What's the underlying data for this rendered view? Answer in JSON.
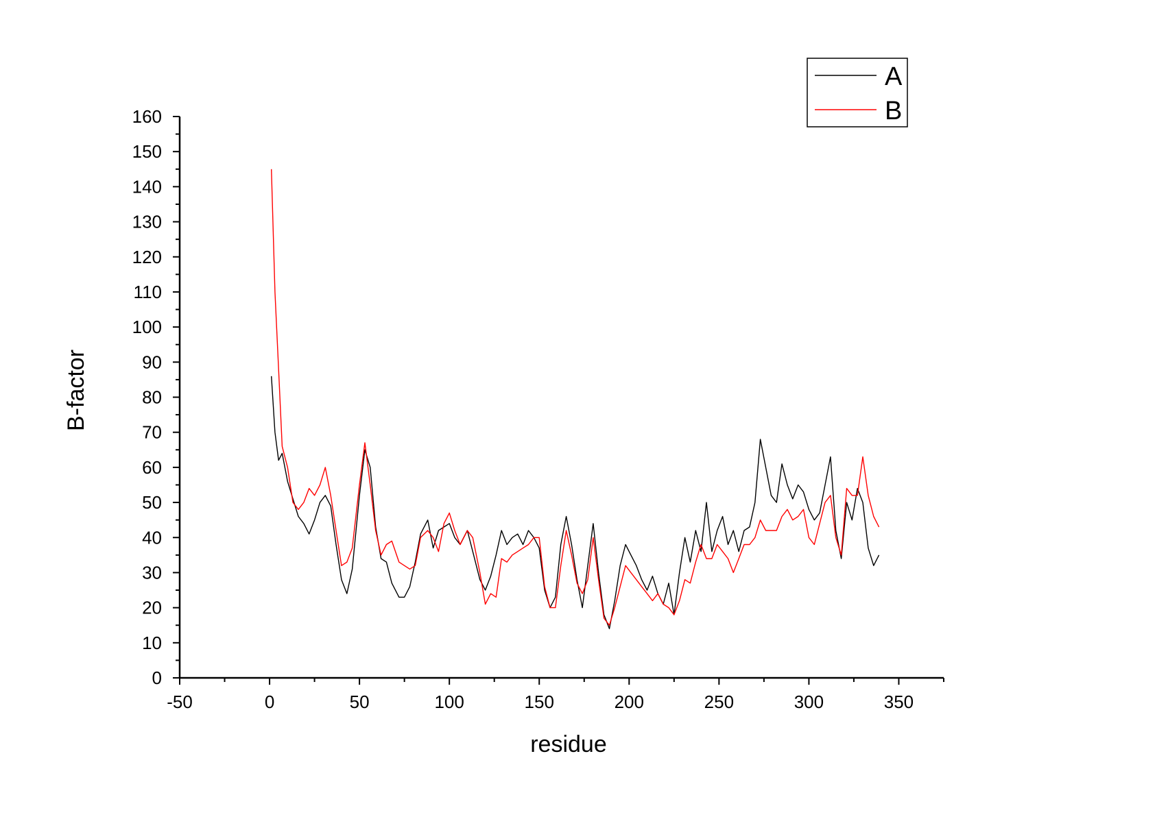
{
  "chart_data": {
    "type": "line",
    "title": "",
    "xlabel": "residue",
    "ylabel": "B-factor",
    "xlim": [
      -50,
      375
    ],
    "ylim": [
      0,
      160
    ],
    "xticks": [
      -50,
      0,
      50,
      100,
      150,
      200,
      250,
      300,
      350
    ],
    "xtick_labels": [
      "-50",
      "0",
      "50",
      "100",
      "150",
      "200",
      "250",
      "300",
      "350"
    ],
    "yticks": [
      0,
      10,
      20,
      30,
      40,
      50,
      60,
      70,
      80,
      90,
      100,
      110,
      120,
      130,
      140,
      150,
      160
    ],
    "ytick_labels": [
      "0",
      "10",
      "20",
      "30",
      "40",
      "50",
      "60",
      "70",
      "80",
      "90",
      "100",
      "110",
      "120",
      "130",
      "140",
      "150",
      "160"
    ],
    "grid": false,
    "legend_position": "top-right",
    "series": [
      {
        "name": "A",
        "color": "#000000",
        "x": [
          1,
          3,
          5,
          7,
          10,
          13,
          16,
          19,
          22,
          25,
          28,
          31,
          34,
          37,
          40,
          43,
          46,
          50,
          53,
          56,
          59,
          62,
          65,
          68,
          72,
          75,
          78,
          81,
          84,
          88,
          91,
          94,
          97,
          100,
          103,
          106,
          110,
          113,
          117,
          120,
          123,
          126,
          129,
          132,
          135,
          138,
          141,
          144,
          147,
          150,
          153,
          156,
          159,
          162,
          165,
          168,
          171,
          174,
          177,
          180,
          183,
          186,
          189,
          192,
          195,
          198,
          201,
          204,
          207,
          210,
          213,
          216,
          219,
          222,
          225,
          228,
          231,
          234,
          237,
          240,
          243,
          246,
          249,
          252,
          255,
          258,
          261,
          264,
          267,
          270,
          273,
          276,
          279,
          282,
          285,
          288,
          291,
          294,
          297,
          300,
          303,
          306,
          309,
          312,
          315,
          318,
          321,
          324,
          327,
          330,
          333,
          336,
          339
        ],
        "y": [
          86,
          70,
          62,
          64,
          56,
          51,
          46,
          44,
          41,
          45,
          50,
          52,
          49,
          38,
          28,
          24,
          31,
          52,
          65,
          60,
          43,
          34,
          33,
          27,
          23,
          23,
          26,
          33,
          41,
          45,
          37,
          42,
          43,
          44,
          40,
          38,
          42,
          36,
          28,
          25,
          29,
          35,
          42,
          38,
          40,
          41,
          38,
          42,
          40,
          37,
          25,
          20,
          23,
          38,
          46,
          38,
          28,
          20,
          32,
          44,
          30,
          18,
          14,
          22,
          32,
          38,
          35,
          32,
          28,
          25,
          29,
          24,
          21,
          27,
          18,
          30,
          40,
          33,
          42,
          36,
          50,
          36,
          42,
          46,
          38,
          42,
          36,
          42,
          43,
          50,
          68,
          60,
          52,
          50,
          61,
          55,
          51,
          55,
          53,
          48,
          45,
          47,
          55,
          63,
          42,
          34,
          50,
          45,
          54,
          50,
          37,
          32,
          35
        ]
      },
      {
        "name": "B",
        "color": "#ff0000",
        "x": [
          1,
          3,
          5,
          7,
          10,
          13,
          16,
          19,
          22,
          25,
          28,
          31,
          34,
          37,
          40,
          43,
          46,
          50,
          53,
          56,
          59,
          62,
          65,
          68,
          72,
          75,
          78,
          81,
          84,
          88,
          91,
          94,
          97,
          100,
          103,
          106,
          110,
          113,
          117,
          120,
          123,
          126,
          129,
          132,
          135,
          138,
          141,
          144,
          147,
          150,
          153,
          156,
          159,
          162,
          165,
          168,
          171,
          174,
          177,
          180,
          183,
          186,
          189,
          192,
          195,
          198,
          201,
          204,
          207,
          210,
          213,
          216,
          219,
          222,
          225,
          228,
          231,
          234,
          237,
          240,
          243,
          246,
          249,
          252,
          255,
          258,
          261,
          264,
          267,
          270,
          273,
          276,
          279,
          282,
          285,
          288,
          291,
          294,
          297,
          300,
          303,
          306,
          309,
          312,
          315,
          318,
          321,
          324,
          327,
          330,
          333,
          336,
          339
        ],
        "y": [
          145,
          110,
          88,
          66,
          60,
          50,
          48,
          50,
          54,
          52,
          55,
          60,
          52,
          42,
          32,
          33,
          37,
          55,
          67,
          55,
          42,
          35,
          38,
          39,
          33,
          32,
          31,
          32,
          40,
          42,
          40,
          36,
          44,
          47,
          42,
          38,
          42,
          40,
          30,
          21,
          24,
          23,
          34,
          33,
          35,
          36,
          37,
          38,
          40,
          40,
          26,
          20,
          20,
          32,
          42,
          35,
          27,
          24,
          28,
          40,
          28,
          17,
          15,
          20,
          26,
          32,
          30,
          28,
          26,
          24,
          22,
          24,
          21,
          20,
          18,
          22,
          28,
          27,
          33,
          38,
          34,
          34,
          38,
          36,
          34,
          30,
          34,
          38,
          38,
          40,
          45,
          42,
          42,
          42,
          46,
          48,
          45,
          46,
          48,
          40,
          38,
          44,
          50,
          52,
          40,
          35,
          54,
          52,
          52,
          63,
          52,
          46,
          43
        ]
      }
    ]
  }
}
